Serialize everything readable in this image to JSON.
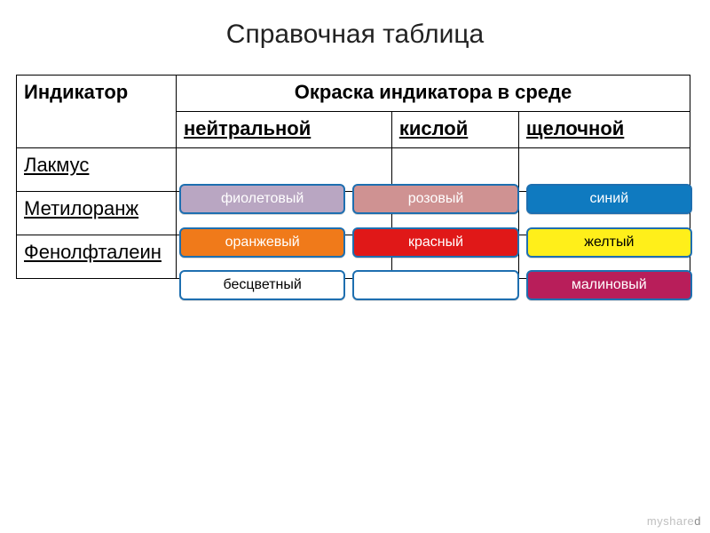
{
  "title": "Справочная таблица",
  "table": {
    "header": {
      "indicator": "Индикатор",
      "coloring": "Окраска индикатора в среде",
      "sub": {
        "neutral": "нейтральной",
        "acidic": "кислой",
        "alkaline": "щелочной"
      }
    },
    "rows": [
      {
        "indicator": "Лакмус",
        "cells": [
          {
            "label": "фиолетовый",
            "bg": "#b9a6c2",
            "fg": "#ffffff"
          },
          {
            "label": "розовый",
            "bg": "#cf9292",
            "fg": "#ffffff"
          },
          {
            "label": "синий",
            "bg": "#0f7ac0",
            "fg": "#ffffff"
          }
        ]
      },
      {
        "indicator": "Метилоранж",
        "cells": [
          {
            "label": "оранжевый",
            "bg": "#f07a1a",
            "fg": "#ffffff"
          },
          {
            "label": "красный",
            "bg": "#e01818",
            "fg": "#ffffff"
          },
          {
            "label": "желтый",
            "bg": "#ffef1a",
            "fg": "#000000"
          }
        ]
      },
      {
        "indicator": "Фенолфталеин",
        "cells": [
          {
            "label": "бесцветный",
            "bg": "#ffffff",
            "fg": "#000000"
          },
          {
            "label": "",
            "bg": "#ffffff",
            "fg": "#000000"
          },
          {
            "label": "малиновый",
            "bg": "#b81e5a",
            "fg": "#ffffff"
          }
        ]
      }
    ]
  },
  "layout": {
    "pill_row_tops": [
      207,
      256,
      304
    ],
    "pill_border": "#1e6fb0",
    "pill_radius": 6
  },
  "watermark": {
    "pre": "myshare",
    "accent": "d"
  }
}
